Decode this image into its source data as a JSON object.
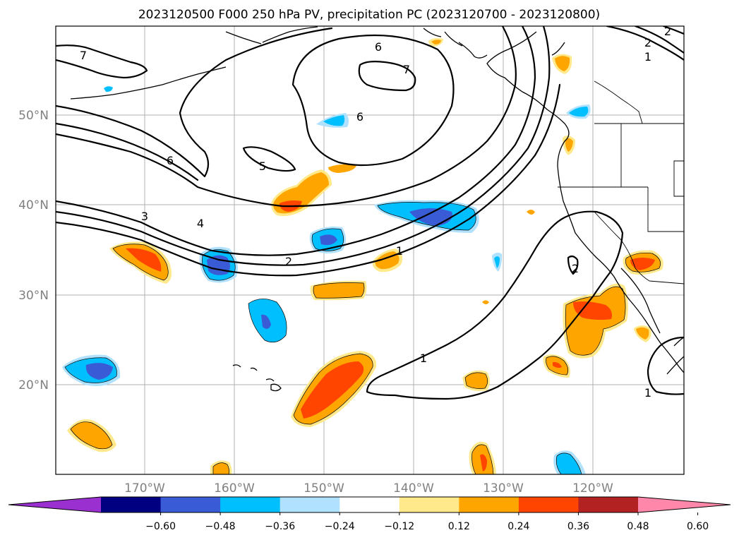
{
  "title": "2023120500 F000 250 hPa PV, precipitation PC (2023120700 - 2023120800)",
  "lat_labels": [
    "50°N",
    "40°N",
    "30°N",
    "20°N"
  ],
  "lon_labels": [
    "170°W",
    "160°W",
    "150°W",
    "140°W",
    "130°W",
    "120°W"
  ],
  "pv_contour_labels": [
    "7",
    "6",
    "7",
    "6",
    "6",
    "5",
    "3",
    "4",
    "2",
    "1",
    "1",
    "2",
    "2",
    "1",
    "1",
    "2"
  ],
  "colorbar": {
    "ticks": [
      "−0.60",
      "−0.48",
      "−0.36",
      "−0.24",
      "−0.12",
      "0.12",
      "0.24",
      "0.36",
      "0.48",
      "0.60"
    ],
    "colors": [
      "#9b30d0",
      "#000080",
      "#3a5bd6",
      "#00bfff",
      "#b0e2ff",
      "#ffffff",
      "#ffe98a",
      "#ffa500",
      "#ff4500",
      "#b22222",
      "#ff88aa"
    ]
  },
  "precip_colors": {
    "blue_light": "#b0e2ff",
    "blue": "#00bfff",
    "blue_dark": "#3a5bd6",
    "yellow": "#ffe98a",
    "orange": "#ffa500",
    "red": "#ff4500"
  }
}
